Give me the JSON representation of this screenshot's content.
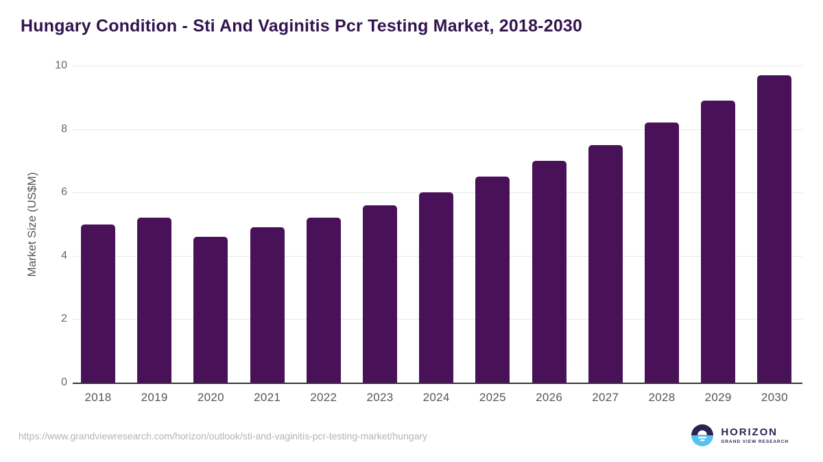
{
  "title": "Hungary Condition - Sti And Vaginitis Pcr Testing Market, 2018-2030",
  "chart_data": {
    "type": "bar",
    "title": "Hungary Condition - Sti And Vaginitis Pcr Testing Market, 2018-2030",
    "categories": [
      "2018",
      "2019",
      "2020",
      "2021",
      "2022",
      "2023",
      "2024",
      "2025",
      "2026",
      "2027",
      "2028",
      "2029",
      "2030"
    ],
    "values": [
      5.0,
      5.2,
      4.6,
      4.9,
      5.2,
      5.6,
      6.0,
      6.5,
      7.0,
      7.5,
      8.2,
      8.9,
      9.7
    ],
    "xlabel": "",
    "ylabel": "Market Size (US$M)",
    "ylim": [
      0,
      10
    ],
    "yticks": [
      0,
      2,
      4,
      6,
      8,
      10
    ],
    "grid": "horizontal",
    "legend": "none",
    "bar_color": "#491158"
  },
  "colors": {
    "title_text": "#33134f",
    "bar_fill": "#491158",
    "axis_line": "#333333",
    "gridline": "#e8e8e8",
    "tick_text": "#666666",
    "axis_label_text": "#555555",
    "source_url_text": "#b3b3b3",
    "logo_purple": "#2e2153",
    "logo_blue": "#56c3ee"
  },
  "footer": {
    "source_url": "https://www.grandviewresearch.com/horizon/outlook/sti-and-vaginitis-pcr-testing-market/hungary",
    "logo": {
      "name": "HORIZON",
      "subtitle": "GRAND VIEW RESEARCH"
    }
  }
}
